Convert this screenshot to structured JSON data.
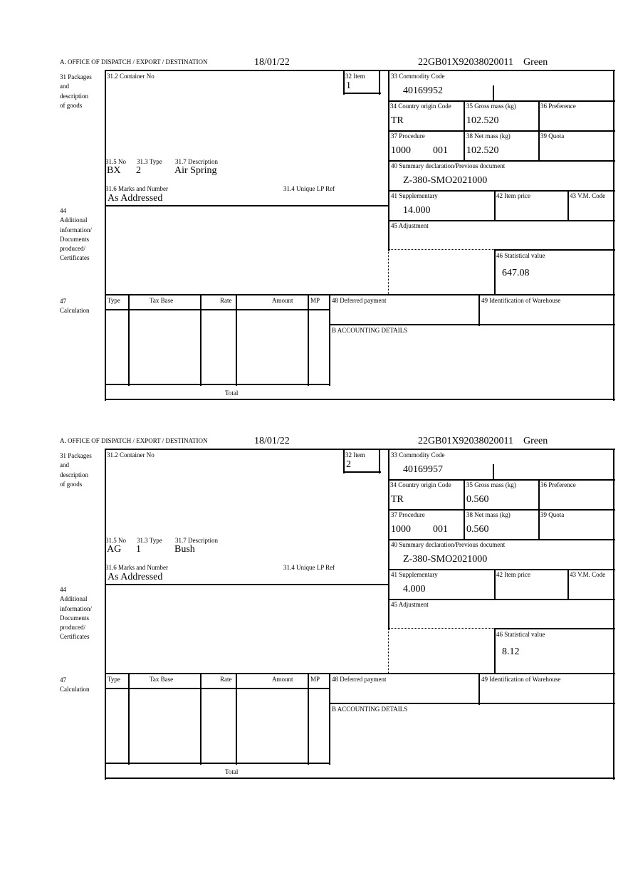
{
  "labels": {
    "office": "A. OFFICE OF DISPATCH / EXPORT / DESTINATION",
    "packages": "31 Packages\nand\ndescription\nof goods",
    "container": "31.2 Container No",
    "item": "32 Item",
    "commodity": "33 Commodity Code",
    "origin": "34 Country origin Code",
    "gross": "35 Gross mass (kg)",
    "preference": "36 Preference",
    "procedure": "37 Procedure",
    "net": "38 Net mass (kg)",
    "quota": "39 Quota",
    "summary": "40 Summary declaration/Previous document",
    "supplementary": "41 Supplementary",
    "item_price": "42 Item price",
    "vm_code": "43 V.M. Code",
    "adjustment": "45 Adjustment",
    "statistical": "46 Statistical value",
    "no": "31.5 No",
    "type": "31.3 Type",
    "description": "31.7 Description",
    "marks": "31.6 Marks and Number",
    "unique_ref": "31.4 Unique LP Ref",
    "additional": "44\nAdditional\ninformation/\nDocuments\nproduced/\nCertificates",
    "calculation": "47\nCalculation",
    "calc_type": "Type",
    "calc_tax_base": "Tax Base",
    "calc_rate": "Rate",
    "calc_amount": "Amount",
    "calc_mp": "MP",
    "deferred": "48 Deferred payment",
    "warehouse": "49 Identification of Warehouse",
    "accounting": "B ACCOUNTING DETAILS",
    "total": "Total"
  },
  "blocks": [
    {
      "date": "18/01/22",
      "reference": "22GB01X92038020011",
      "route": "Green",
      "item": "1",
      "commodity_code": "40169952",
      "origin": "TR",
      "gross_mass": "102.520",
      "procedure": "1000",
      "procedure_extra": "001",
      "net_mass": "102.520",
      "summary_doc": "Z-380-SMO2021000",
      "package_no": "BX",
      "package_type": "2",
      "description": "Air Spring",
      "marks": "As Addressed",
      "supplementary": "14.000",
      "statistical_value": "647.08"
    },
    {
      "date": "18/01/22",
      "reference": "22GB01X92038020011",
      "route": "Green",
      "item": "2",
      "commodity_code": "40169957",
      "origin": "TR",
      "gross_mass": "0.560",
      "procedure": "1000",
      "procedure_extra": "001",
      "net_mass": "0.560",
      "summary_doc": "Z-380-SMO2021000",
      "package_no": "AG",
      "package_type": "1",
      "description": "Bush",
      "marks": "As Addressed",
      "supplementary": "4.000",
      "statistical_value": "8.12"
    }
  ]
}
